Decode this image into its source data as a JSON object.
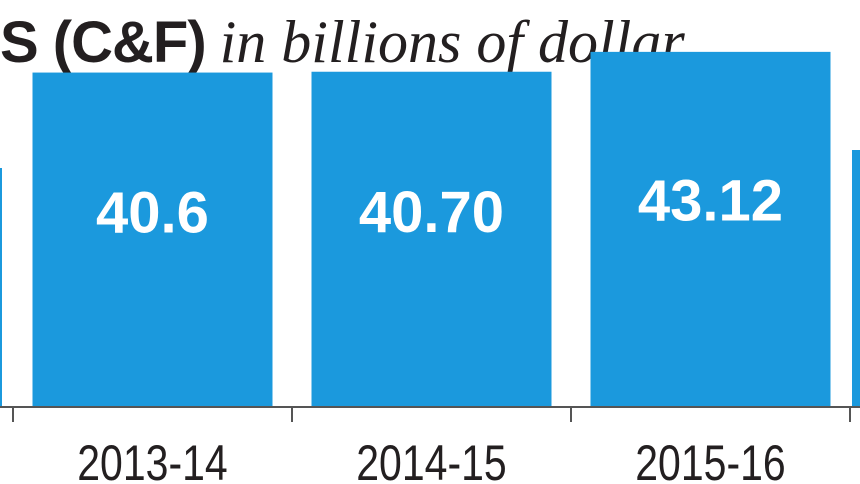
{
  "title": {
    "bold": "S (C&F)",
    "italic": "in billions of dollar"
  },
  "colors": {
    "bar": "#1b99dd",
    "bar_edge": "#1188cc",
    "axis": "#555555",
    "label_text": "#ffffff",
    "tick_text": "#231f20"
  },
  "chart_data": {
    "type": "bar",
    "categories": [
      "2013-14",
      "2014-15",
      "2015-16"
    ],
    "values": [
      40.6,
      40.7,
      43.12
    ],
    "value_labels": [
      "40.6",
      "40.70",
      "43.12"
    ],
    "title": "S (C&F) in billions of dollar",
    "xlabel": "",
    "ylabel": "",
    "ylim": [
      0,
      47
    ]
  }
}
